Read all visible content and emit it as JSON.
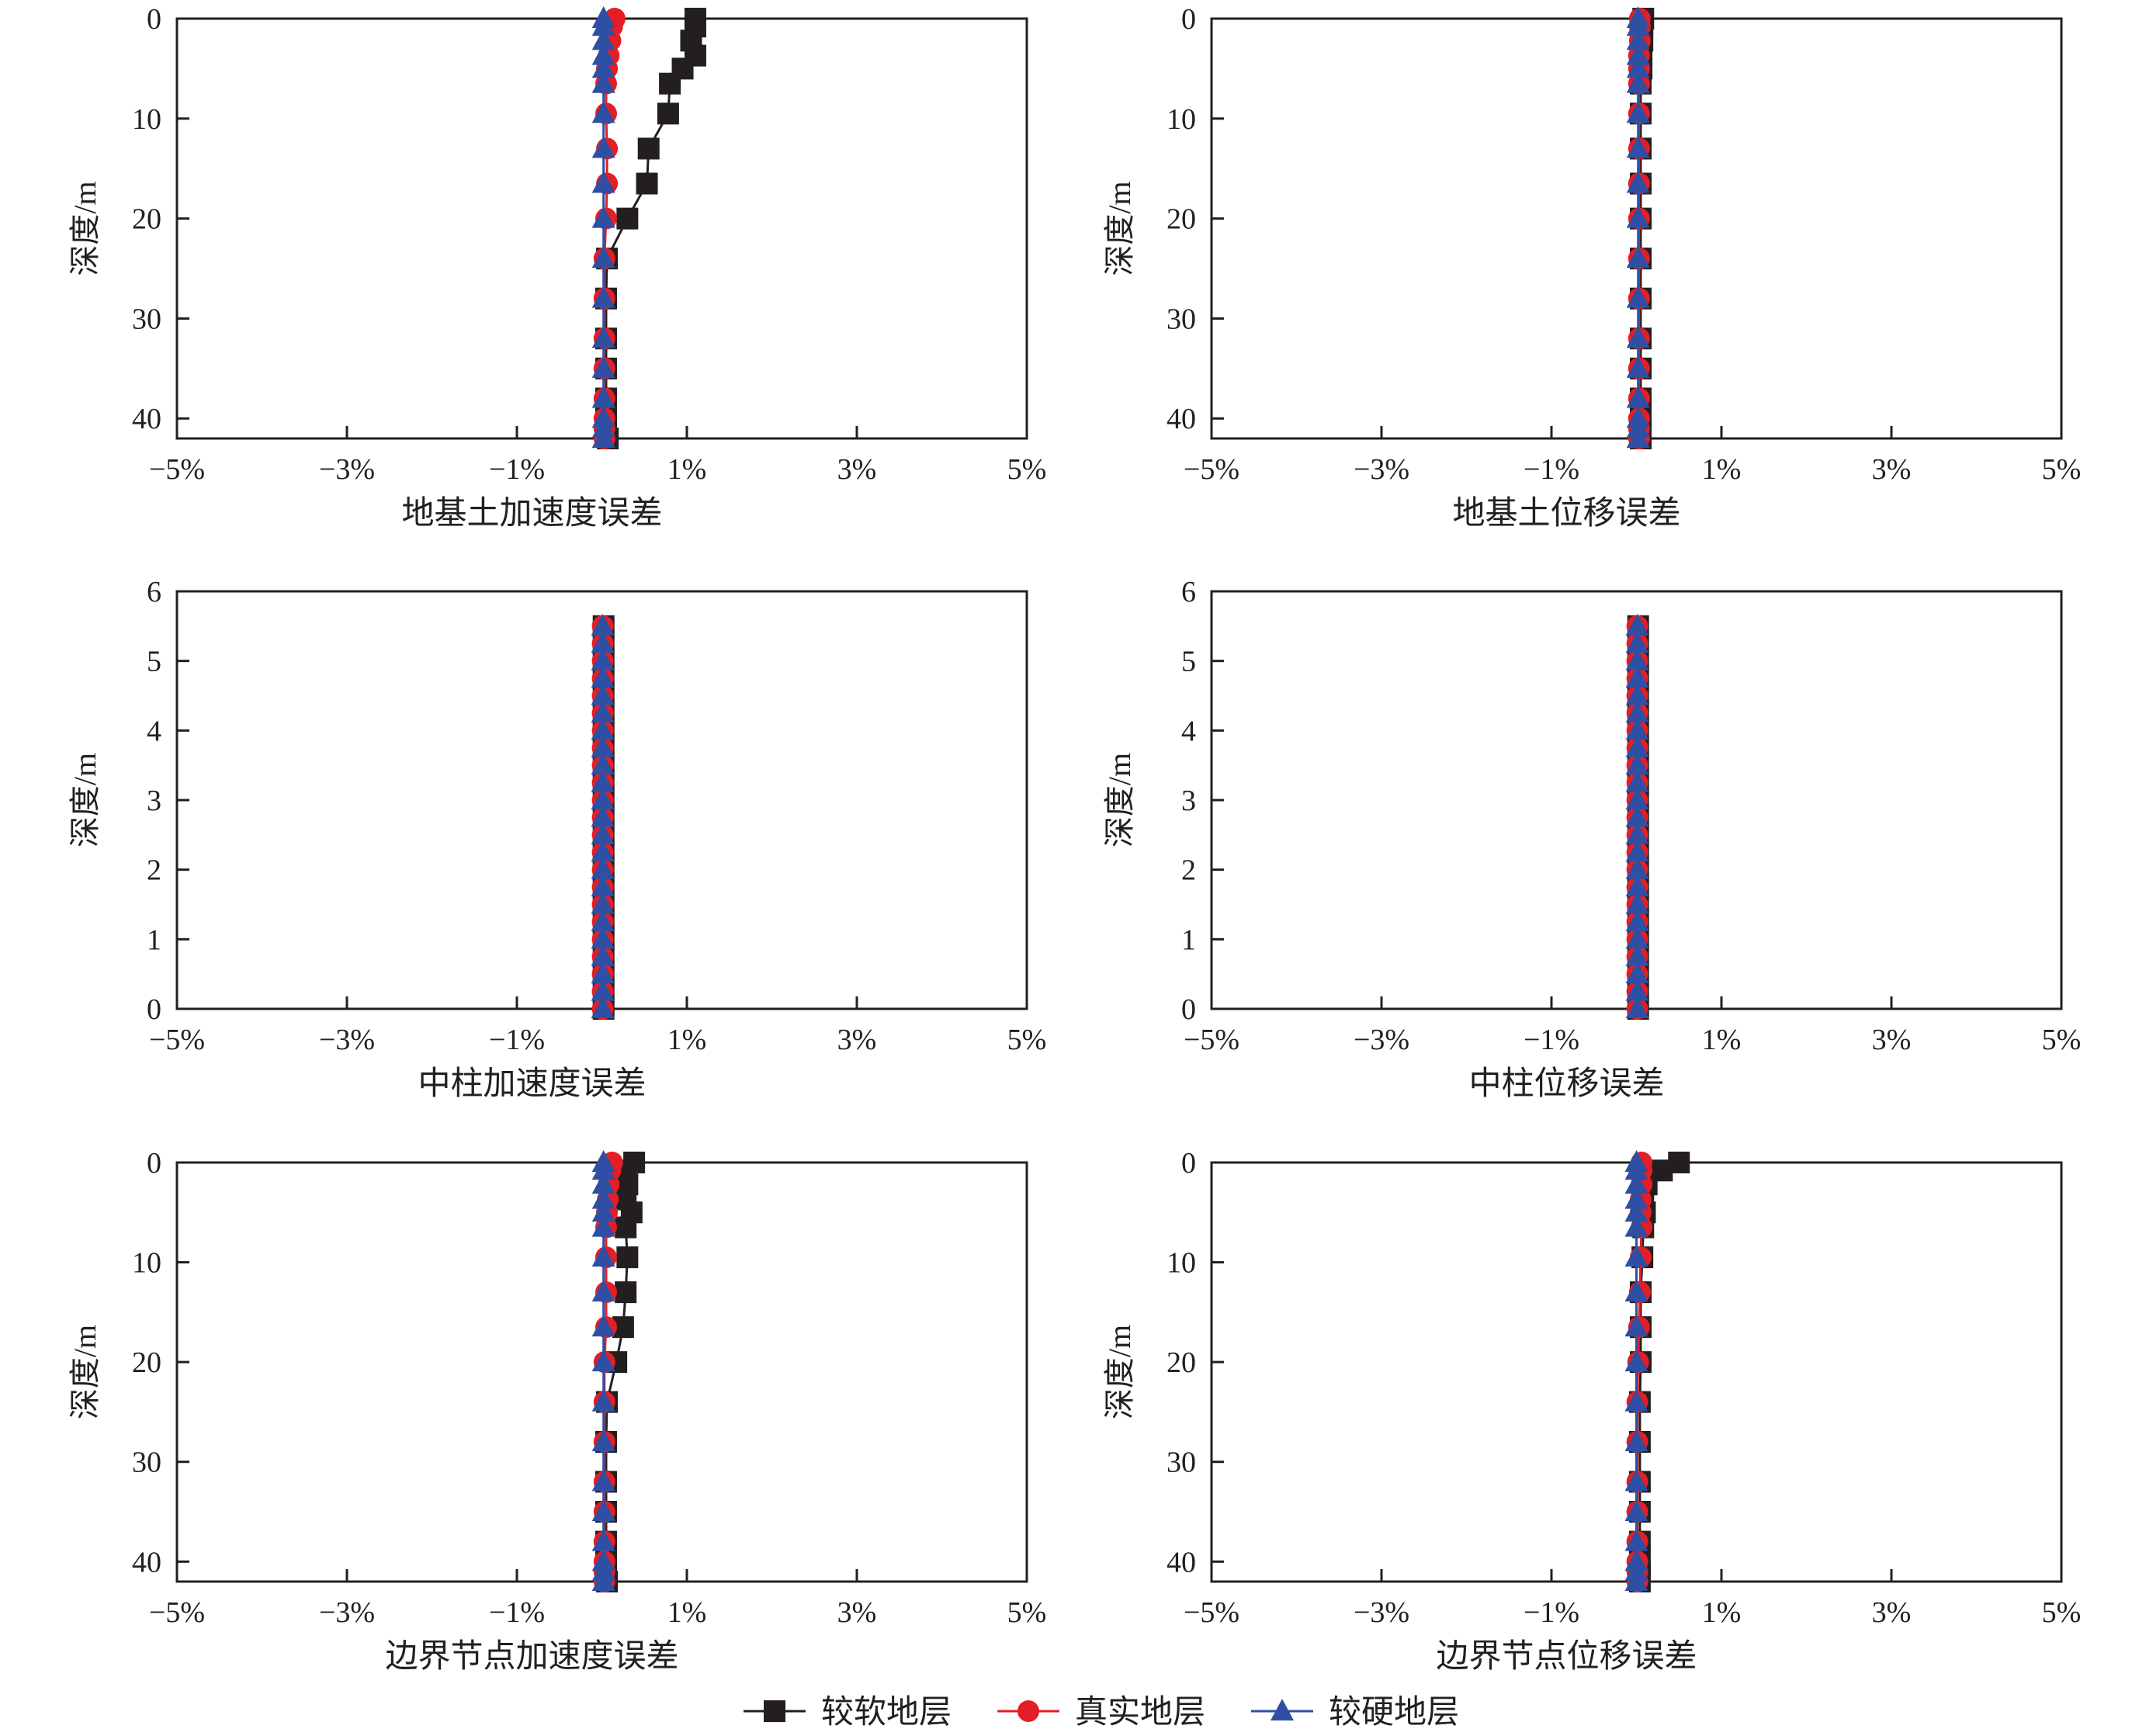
{
  "colors": {
    "soft": "#231f20",
    "real": "#e41e26",
    "hard": "#2e4fa3",
    "axis": "#231f20"
  },
  "legend": [
    {
      "key": "soft",
      "label": "较软地层",
      "marker": "square"
    },
    {
      "key": "real",
      "label": "真实地层",
      "marker": "circle"
    },
    {
      "key": "hard",
      "label": "较硬地层",
      "marker": "triangle"
    }
  ],
  "chart_data": [
    {
      "type": "line",
      "title": "地基土加速度误差",
      "ylabel": "深度/m",
      "xlim": [
        -5,
        5
      ],
      "ylim": [
        0,
        42
      ],
      "xticks": [
        -5,
        -3,
        -1,
        1,
        3,
        5
      ],
      "xtick_labels": [
        "−5%",
        "−3%",
        "−1%",
        "1%",
        "3%",
        "5%"
      ],
      "yticks": [
        0,
        10,
        20,
        30,
        40
      ],
      "ytick_labels": [
        "0",
        "10",
        "20",
        "30",
        "40"
      ],
      "depth": [
        0,
        0.8,
        2.2,
        3.7,
        5,
        6.5,
        9.5,
        13,
        16.5,
        20,
        24,
        28,
        32,
        35,
        38,
        40,
        41,
        42
      ],
      "series": [
        {
          "key": "soft",
          "name": "较软地层",
          "values": [
            1.1,
            1.1,
            1.05,
            1.1,
            0.95,
            0.8,
            0.78,
            0.55,
            0.53,
            0.3,
            0.06,
            0.05,
            0.05,
            0.05,
            0.05,
            0.05,
            0.05,
            0.07
          ]
        },
        {
          "key": "real",
          "name": "真实地层",
          "values": [
            0.15,
            0.12,
            0.1,
            0.08,
            0.06,
            0.05,
            0.05,
            0.06,
            0.06,
            0.05,
            0.03,
            0.03,
            0.03,
            0.03,
            0.03,
            0.03,
            0.03,
            0.03
          ]
        },
        {
          "key": "hard",
          "name": "较硬地层",
          "values": [
            0.02,
            0.02,
            0.02,
            0.02,
            0.02,
            0.02,
            0.02,
            0.02,
            0.02,
            0.02,
            0.02,
            0.02,
            0.02,
            0.02,
            0.02,
            0.02,
            0.02,
            0.02
          ]
        }
      ]
    },
    {
      "type": "line",
      "title": "地基土位移误差",
      "ylabel": "深度/m",
      "xlim": [
        -5,
        5
      ],
      "ylim": [
        0,
        42
      ],
      "xticks": [
        -5,
        -3,
        -1,
        1,
        3,
        5
      ],
      "xtick_labels": [
        "−5%",
        "−3%",
        "−1%",
        "1%",
        "3%",
        "5%"
      ],
      "yticks": [
        0,
        10,
        20,
        30,
        40
      ],
      "ytick_labels": [
        "0",
        "10",
        "20",
        "30",
        "40"
      ],
      "depth": [
        0,
        0.8,
        2.2,
        3.7,
        5,
        6.5,
        9.5,
        13,
        16.5,
        20,
        24,
        28,
        32,
        35,
        38,
        40,
        41,
        42
      ],
      "series": [
        {
          "key": "soft",
          "name": "较软地层",
          "values": [
            0.08,
            0.07,
            0.07,
            0.06,
            0.06,
            0.05,
            0.05,
            0.05,
            0.05,
            0.05,
            0.05,
            0.05,
            0.05,
            0.05,
            0.05,
            0.05,
            0.05,
            0.05
          ]
        },
        {
          "key": "real",
          "name": "真实地层",
          "values": [
            0.04,
            0.04,
            0.04,
            0.03,
            0.03,
            0.03,
            0.03,
            0.03,
            0.03,
            0.03,
            0.03,
            0.03,
            0.03,
            0.03,
            0.03,
            0.03,
            0.03,
            0.03
          ]
        },
        {
          "key": "hard",
          "name": "较硬地层",
          "values": [
            0.02,
            0.02,
            0.02,
            0.02,
            0.02,
            0.02,
            0.02,
            0.02,
            0.02,
            0.02,
            0.02,
            0.02,
            0.02,
            0.02,
            0.02,
            0.02,
            0.02,
            0.02
          ]
        }
      ]
    },
    {
      "type": "line",
      "title": "中柱加速度误差",
      "ylabel": "深度/m",
      "xlim": [
        -5,
        5
      ],
      "ylim": [
        0,
        6
      ],
      "xticks": [
        -5,
        -3,
        -1,
        1,
        3,
        5
      ],
      "xtick_labels": [
        "−5%",
        "−3%",
        "−1%",
        "1%",
        "3%",
        "5%"
      ],
      "yticks": [
        0,
        1,
        2,
        3,
        4,
        5,
        6
      ],
      "ytick_labels": [
        "0",
        "1",
        "2",
        "3",
        "4",
        "5",
        "6"
      ],
      "depth": [
        0,
        0.25,
        0.5,
        0.75,
        1,
        1.25,
        1.5,
        1.75,
        2,
        2.25,
        2.5,
        2.75,
        3,
        3.25,
        3.5,
        3.75,
        4,
        4.25,
        4.5,
        4.75,
        5,
        5.25,
        5.5
      ],
      "series": [
        {
          "key": "soft",
          "name": "较软地层",
          "values": [
            0.02,
            0.02,
            0.02,
            0.02,
            0.02,
            0.02,
            0.02,
            0.02,
            0.02,
            0.02,
            0.02,
            0.02,
            0.02,
            0.02,
            0.02,
            0.02,
            0.02,
            0.02,
            0.02,
            0.02,
            0.02,
            0.02,
            0.02
          ]
        },
        {
          "key": "real",
          "name": "真实地层",
          "values": [
            0.01,
            0.01,
            0.01,
            0.01,
            0.01,
            0.01,
            0.01,
            0.01,
            0.01,
            0.01,
            0.01,
            0.01,
            0.01,
            0.01,
            0.01,
            0.01,
            0.01,
            0.01,
            0.01,
            0.01,
            0.01,
            0.01,
            0.01
          ]
        },
        {
          "key": "hard",
          "name": "较硬地层",
          "values": [
            0.01,
            0.01,
            0.01,
            0.01,
            0.01,
            0.01,
            0.01,
            0.01,
            0.01,
            0.01,
            0.01,
            0.01,
            0.01,
            0.01,
            0.01,
            0.01,
            0.01,
            0.01,
            0.01,
            0.01,
            0.01,
            0.01,
            0.01
          ]
        }
      ]
    },
    {
      "type": "line",
      "title": "中柱位移误差",
      "ylabel": "深度/m",
      "xlim": [
        -5,
        5
      ],
      "ylim": [
        0,
        6
      ],
      "xticks": [
        -5,
        -3,
        -1,
        1,
        3,
        5
      ],
      "xtick_labels": [
        "−5%",
        "−3%",
        "−1%",
        "1%",
        "3%",
        "5%"
      ],
      "yticks": [
        0,
        1,
        2,
        3,
        4,
        5,
        6
      ],
      "ytick_labels": [
        "0",
        "1",
        "2",
        "3",
        "4",
        "5",
        "6"
      ],
      "depth": [
        0,
        0.25,
        0.5,
        0.75,
        1,
        1.25,
        1.5,
        1.75,
        2,
        2.25,
        2.5,
        2.75,
        3,
        3.25,
        3.5,
        3.75,
        4,
        4.25,
        4.5,
        4.75,
        5,
        5.25,
        5.5
      ],
      "series": [
        {
          "key": "soft",
          "name": "较软地层",
          "values": [
            0.02,
            0.02,
            0.02,
            0.02,
            0.02,
            0.02,
            0.02,
            0.02,
            0.02,
            0.02,
            0.02,
            0.02,
            0.02,
            0.02,
            0.02,
            0.02,
            0.02,
            0.02,
            0.02,
            0.02,
            0.02,
            0.02,
            0.02
          ]
        },
        {
          "key": "real",
          "name": "真实地层",
          "values": [
            0.01,
            0.01,
            0.01,
            0.01,
            0.01,
            0.01,
            0.01,
            0.01,
            0.01,
            0.01,
            0.01,
            0.01,
            0.01,
            0.01,
            0.01,
            0.01,
            0.01,
            0.01,
            0.01,
            0.01,
            0.01,
            0.01,
            0.01
          ]
        },
        {
          "key": "hard",
          "name": "较硬地层",
          "values": [
            0.01,
            0.01,
            0.01,
            0.01,
            0.01,
            0.01,
            0.01,
            0.01,
            0.01,
            0.01,
            0.01,
            0.01,
            0.01,
            0.01,
            0.01,
            0.01,
            0.01,
            0.01,
            0.01,
            0.01,
            0.01,
            0.01,
            0.01
          ]
        }
      ]
    },
    {
      "type": "line",
      "title": "边界节点加速度误差",
      "ylabel": "深度/m",
      "xlim": [
        -5,
        5
      ],
      "ylim": [
        0,
        42
      ],
      "xticks": [
        -5,
        -3,
        -1,
        1,
        3,
        5
      ],
      "xtick_labels": [
        "−5%",
        "−3%",
        "−1%",
        "1%",
        "3%",
        "5%"
      ],
      "yticks": [
        0,
        10,
        20,
        30,
        40
      ],
      "ytick_labels": [
        "0",
        "10",
        "20",
        "30",
        "40"
      ],
      "depth": [
        0,
        0.8,
        2.2,
        3.7,
        5,
        6.5,
        9.5,
        13,
        16.5,
        20,
        24,
        28,
        32,
        35,
        38,
        40,
        41,
        42
      ],
      "series": [
        {
          "key": "soft",
          "name": "较软地层",
          "values": [
            0.38,
            0.28,
            0.3,
            0.28,
            0.35,
            0.28,
            0.3,
            0.28,
            0.25,
            0.17,
            0.06,
            0.05,
            0.05,
            0.05,
            0.05,
            0.05,
            0.05,
            0.06
          ]
        },
        {
          "key": "real",
          "name": "真实地层",
          "values": [
            0.12,
            0.1,
            0.08,
            0.07,
            0.06,
            0.05,
            0.05,
            0.05,
            0.05,
            0.03,
            0.03,
            0.03,
            0.03,
            0.03,
            0.03,
            0.03,
            0.03,
            0.03
          ]
        },
        {
          "key": "hard",
          "name": "较硬地层",
          "values": [
            0.02,
            0.02,
            0.02,
            0.02,
            0.02,
            0.02,
            0.02,
            0.02,
            0.02,
            0.02,
            0.02,
            0.02,
            0.02,
            0.02,
            0.02,
            0.02,
            0.02,
            0.02
          ]
        }
      ]
    },
    {
      "type": "line",
      "title": "边界节点位移误差",
      "ylabel": "深度/m",
      "xlim": [
        -5,
        5
      ],
      "ylim": [
        0,
        42
      ],
      "xticks": [
        -5,
        -3,
        -1,
        1,
        3,
        5
      ],
      "xtick_labels": [
        "−5%",
        "−3%",
        "−1%",
        "1%",
        "3%",
        "5%"
      ],
      "yticks": [
        0,
        10,
        20,
        30,
        40
      ],
      "ytick_labels": [
        "0",
        "10",
        "20",
        "30",
        "40"
      ],
      "depth": [
        0,
        0.8,
        2.2,
        3.7,
        5,
        6.5,
        9.5,
        13,
        16.5,
        20,
        24,
        28,
        32,
        35,
        38,
        40,
        41,
        42
      ],
      "series": [
        {
          "key": "soft",
          "name": "较软地层",
          "values": [
            0.5,
            0.3,
            0.12,
            0.08,
            0.1,
            0.08,
            0.07,
            0.05,
            0.05,
            0.05,
            0.04,
            0.04,
            0.04,
            0.04,
            0.04,
            0.04,
            0.04,
            0.04
          ]
        },
        {
          "key": "real",
          "name": "真实地层",
          "values": [
            0.06,
            0.06,
            0.06,
            0.05,
            0.05,
            0.06,
            0.05,
            0.04,
            0.03,
            0.02,
            0.01,
            0.01,
            0.01,
            0.01,
            0.01,
            0.01,
            0.01,
            0.01
          ]
        },
        {
          "key": "hard",
          "name": "较硬地层",
          "values": [
            0.0,
            0.0,
            0.0,
            0.0,
            0.0,
            0.0,
            0.0,
            0.0,
            0.0,
            0.0,
            0.0,
            0.0,
            0.0,
            0.0,
            0.0,
            0.0,
            0.0,
            0.0
          ]
        }
      ]
    }
  ]
}
